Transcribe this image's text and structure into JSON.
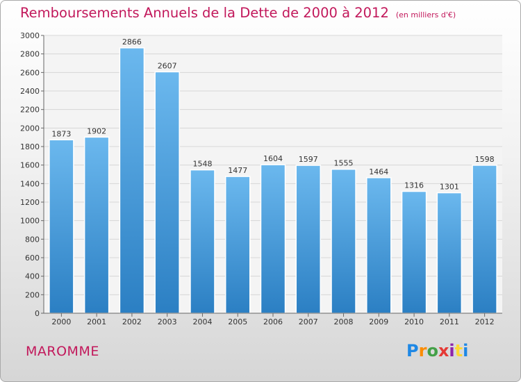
{
  "header": {
    "title": "Remboursements Annuels de la Dette de 2000 à 2012",
    "subtitle": "(en milliers d'€)"
  },
  "footer": {
    "city": "MAROMME",
    "logo": {
      "letters": [
        "P",
        "r",
        "o",
        "x",
        "i",
        "t",
        "i"
      ],
      "colors": [
        "#1e88e5",
        "#fb8c00",
        "#43a047",
        "#e53935",
        "#8e24aa",
        "#fdd835",
        "#1e88e5"
      ]
    }
  },
  "colors": {
    "bar_light": "#6bb8ee",
    "bar_dark": "#2b7fc3",
    "grid": "#d7d7d7",
    "axis": "#666666",
    "text": "#333333"
  },
  "chart_data": {
    "type": "bar",
    "title": "Remboursements Annuels de la Dette de 2000 à 2012",
    "subtitle": "(en milliers d'€)",
    "categories": [
      "2000",
      "2001",
      "2002",
      "2003",
      "2004",
      "2005",
      "2006",
      "2007",
      "2008",
      "2009",
      "2010",
      "2011",
      "2012"
    ],
    "values": [
      1873,
      1902,
      2866,
      2607,
      1548,
      1477,
      1604,
      1597,
      1555,
      1464,
      1316,
      1301,
      1598
    ],
    "ylim": [
      0,
      3000
    ],
    "ytick_step": 200,
    "grid": true,
    "data_labels": true
  }
}
